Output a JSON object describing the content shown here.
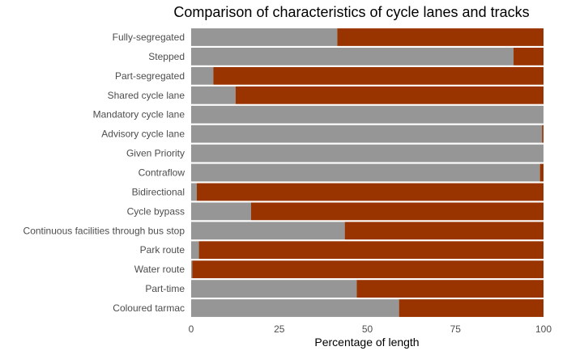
{
  "chart_data": {
    "type": "bar",
    "orientation": "horizontal",
    "stacked": true,
    "title": "Comparison of characteristics of cycle lanes and tracks",
    "xlabel": "Percentage of length",
    "ylabel": "",
    "xlim": [
      0,
      100
    ],
    "x_ticks": [
      "0",
      "25",
      "50",
      "75",
      "100"
    ],
    "grid": false,
    "legend": "none",
    "categories": [
      "Fully-segregated",
      "Stepped",
      "Part-segregated",
      "Shared cycle lane",
      "Mandatory cycle lane",
      "Advisory cycle lane",
      "Given Priority",
      "Contraflow",
      "Bidirectional",
      "Cycle bypass",
      "Continuous facilities through bus stop",
      "Park route",
      "Water route",
      "Part-time",
      "Coloured tarmac"
    ],
    "series": [
      {
        "color": "#969696",
        "values": [
          41.5,
          91.5,
          6.3,
          12.6,
          100,
          99.6,
          100,
          99,
          1.6,
          17,
          43.6,
          2.2,
          0.3,
          47,
          59
        ]
      },
      {
        "color": "#993300",
        "values": [
          58.5,
          8.5,
          93.7,
          87.4,
          0,
          0.4,
          0,
          1,
          98.4,
          83,
          56.4,
          97.8,
          99.7,
          53,
          41
        ]
      }
    ]
  }
}
